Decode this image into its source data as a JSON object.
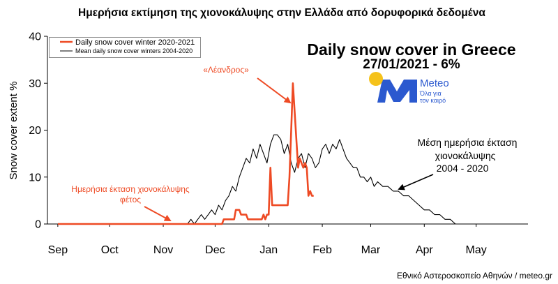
{
  "heading": "Ημερήσια εκτίμηση της χιονοκάλυψης στην Ελλάδα από δορυφορικά δεδομένα",
  "credit": "Εθνικό Αστεροσκοπείο Αθηνών / meteo.gr",
  "logo": {
    "name": "Meteo",
    "tagline_1": "Όλα για",
    "tagline_2": "τον καιρό",
    "icon": "meteo-logo-icon",
    "sun_icon": "sun-icon",
    "brand_color": "#2b59cf",
    "sun_color": "#f5c21b"
  },
  "chart_data": {
    "type": "line",
    "title": "Daily snow cover in Greece",
    "subtitle": "27/01/2021 - 6%",
    "ylabel": "Snow cover extent %",
    "xlim": [
      "2020-08-26",
      "2021-05-31"
    ],
    "ylim": [
      0,
      40
    ],
    "yticks": [
      0,
      10,
      20,
      30,
      40
    ],
    "xticks": [
      {
        "date": "2020-09-01",
        "label": "Sep"
      },
      {
        "date": "2020-10-01",
        "label": "Oct"
      },
      {
        "date": "2020-11-01",
        "label": "Nov"
      },
      {
        "date": "2020-12-01",
        "label": "Dec"
      },
      {
        "date": "2021-01-01",
        "label": "Jan"
      },
      {
        "date": "2021-02-01",
        "label": "Feb"
      },
      {
        "date": "2021-03-01",
        "label": "Mar"
      },
      {
        "date": "2021-04-01",
        "label": "Apr"
      },
      {
        "date": "2021-05-01",
        "label": "May"
      }
    ],
    "grid": false,
    "legend_position": "top-left",
    "series": [
      {
        "name": "Daily snow cover winter 2020-2021",
        "color": "#ee4a24",
        "points": [
          [
            "2020-09-01",
            0
          ],
          [
            "2020-12-05",
            0
          ],
          [
            "2020-12-06",
            1
          ],
          [
            "2020-12-12",
            1
          ],
          [
            "2020-12-13",
            3
          ],
          [
            "2020-12-15",
            3
          ],
          [
            "2020-12-16",
            2
          ],
          [
            "2020-12-19",
            2
          ],
          [
            "2020-12-20",
            1
          ],
          [
            "2020-12-28",
            1
          ],
          [
            "2020-12-29",
            2
          ],
          [
            "2020-12-30",
            1
          ],
          [
            "2020-12-31",
            2
          ],
          [
            "2021-01-01",
            2
          ],
          [
            "2021-01-02",
            12
          ],
          [
            "2021-01-03",
            4
          ],
          [
            "2021-01-12",
            4
          ],
          [
            "2021-01-13",
            10
          ],
          [
            "2021-01-14",
            20
          ],
          [
            "2021-01-15",
            30
          ],
          [
            "2021-01-16",
            24
          ],
          [
            "2021-01-17",
            18
          ],
          [
            "2021-01-18",
            12
          ],
          [
            "2021-01-19",
            14
          ],
          [
            "2021-01-20",
            13
          ],
          [
            "2021-01-21",
            12
          ],
          [
            "2021-01-22",
            13
          ],
          [
            "2021-01-23",
            12
          ],
          [
            "2021-01-24",
            6
          ],
          [
            "2021-01-25",
            7
          ],
          [
            "2021-01-26",
            6
          ],
          [
            "2021-01-27",
            6
          ]
        ]
      },
      {
        "name": "Mean daily snow cover winters 2004-2020",
        "color": "#000000",
        "points": [
          [
            "2020-09-01",
            0
          ],
          [
            "2020-11-15",
            0
          ],
          [
            "2020-11-17",
            1
          ],
          [
            "2020-11-19",
            0
          ],
          [
            "2020-11-21",
            1
          ],
          [
            "2020-11-23",
            2
          ],
          [
            "2020-11-25",
            1
          ],
          [
            "2020-11-27",
            2
          ],
          [
            "2020-11-29",
            3
          ],
          [
            "2020-12-01",
            2
          ],
          [
            "2020-12-03",
            4
          ],
          [
            "2020-12-05",
            3
          ],
          [
            "2020-12-07",
            5
          ],
          [
            "2020-12-09",
            6
          ],
          [
            "2020-12-11",
            8
          ],
          [
            "2020-12-13",
            7
          ],
          [
            "2020-12-15",
            10
          ],
          [
            "2020-12-17",
            12
          ],
          [
            "2020-12-19",
            14
          ],
          [
            "2020-12-21",
            13
          ],
          [
            "2020-12-23",
            16
          ],
          [
            "2020-12-25",
            14
          ],
          [
            "2020-12-27",
            17
          ],
          [
            "2020-12-29",
            15
          ],
          [
            "2020-12-31",
            13
          ],
          [
            "2021-01-02",
            17
          ],
          [
            "2021-01-04",
            19
          ],
          [
            "2021-01-06",
            19
          ],
          [
            "2021-01-08",
            18
          ],
          [
            "2021-01-10",
            15
          ],
          [
            "2021-01-12",
            17
          ],
          [
            "2021-01-14",
            13
          ],
          [
            "2021-01-16",
            11
          ],
          [
            "2021-01-18",
            14
          ],
          [
            "2021-01-20",
            15
          ],
          [
            "2021-01-22",
            12
          ],
          [
            "2021-01-24",
            15
          ],
          [
            "2021-01-26",
            14
          ],
          [
            "2021-01-28",
            12
          ],
          [
            "2021-01-30",
            13
          ],
          [
            "2021-02-01",
            16
          ],
          [
            "2021-02-03",
            17
          ],
          [
            "2021-02-05",
            15
          ],
          [
            "2021-02-07",
            17
          ],
          [
            "2021-02-09",
            16
          ],
          [
            "2021-02-11",
            18
          ],
          [
            "2021-02-13",
            16
          ],
          [
            "2021-02-15",
            14
          ],
          [
            "2021-02-17",
            13
          ],
          [
            "2021-02-19",
            12
          ],
          [
            "2021-02-21",
            12
          ],
          [
            "2021-02-23",
            10
          ],
          [
            "2021-02-25",
            10
          ],
          [
            "2021-02-27",
            9
          ],
          [
            "2021-03-01",
            10
          ],
          [
            "2021-03-03",
            8
          ],
          [
            "2021-03-05",
            9
          ],
          [
            "2021-03-08",
            8
          ],
          [
            "2021-03-11",
            8
          ],
          [
            "2021-03-14",
            7
          ],
          [
            "2021-03-17",
            7
          ],
          [
            "2021-03-20",
            6
          ],
          [
            "2021-03-23",
            6
          ],
          [
            "2021-03-26",
            5
          ],
          [
            "2021-03-29",
            4
          ],
          [
            "2021-04-01",
            3
          ],
          [
            "2021-04-04",
            3
          ],
          [
            "2021-04-07",
            2
          ],
          [
            "2021-04-10",
            2
          ],
          [
            "2021-04-13",
            1
          ],
          [
            "2021-04-16",
            1
          ],
          [
            "2021-04-19",
            0
          ],
          [
            "2021-05-31",
            0
          ]
        ]
      }
    ],
    "annotations": [
      {
        "lines": [
          "«Λέανδρος»"
        ],
        "color": "#ee4a24"
      },
      {
        "lines": [
          "Ημερήσια έκταση χιονοκάλυψης",
          "φέτος"
        ],
        "color": "#ee4a24"
      },
      {
        "lines": [
          "Μέση ημερήσια έκταση",
          "χιονοκάλυψης",
          "2004 - 2020"
        ],
        "color": "#000000"
      }
    ]
  }
}
